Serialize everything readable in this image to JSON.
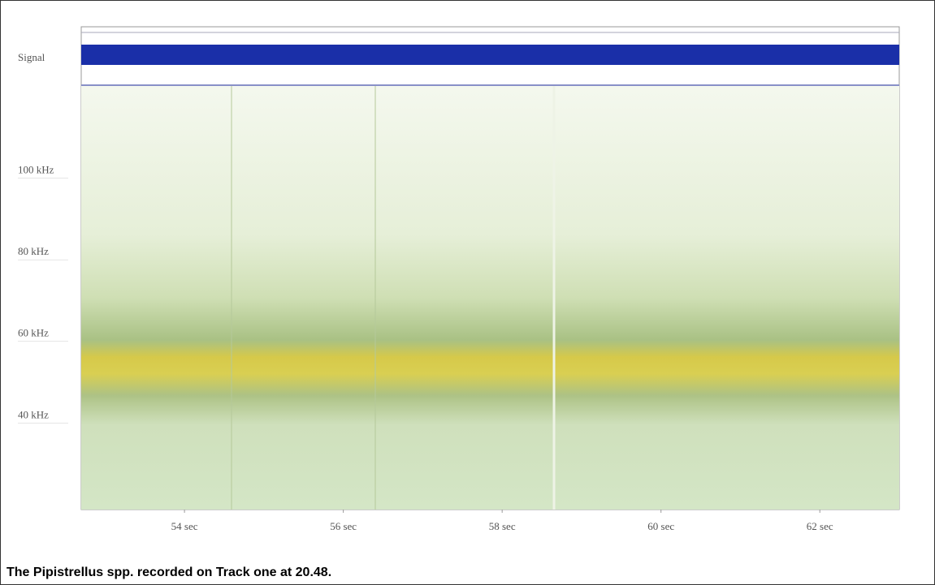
{
  "chart_data": {
    "type": "spectrogram",
    "signal_label": "Signal",
    "caption": "The Pipistrellus spp. recorded on Track one at 20.48.",
    "xlim": [
      52.7,
      63
    ],
    "xticks": [
      {
        "value": 54,
        "label": "54 sec"
      },
      {
        "value": 56,
        "label": "56 sec"
      },
      {
        "value": 58,
        "label": "58 sec"
      },
      {
        "value": 60,
        "label": "60 sec"
      },
      {
        "value": 62,
        "label": "62 sec"
      }
    ],
    "ylim": [
      17,
      121
    ],
    "yticks": [
      {
        "value": 40,
        "label": "40 kHz"
      },
      {
        "value": 60,
        "label": "60 kHz"
      },
      {
        "value": 80,
        "label": "80 kHz"
      },
      {
        "value": 100,
        "label": "100 kHz"
      }
    ]
  }
}
